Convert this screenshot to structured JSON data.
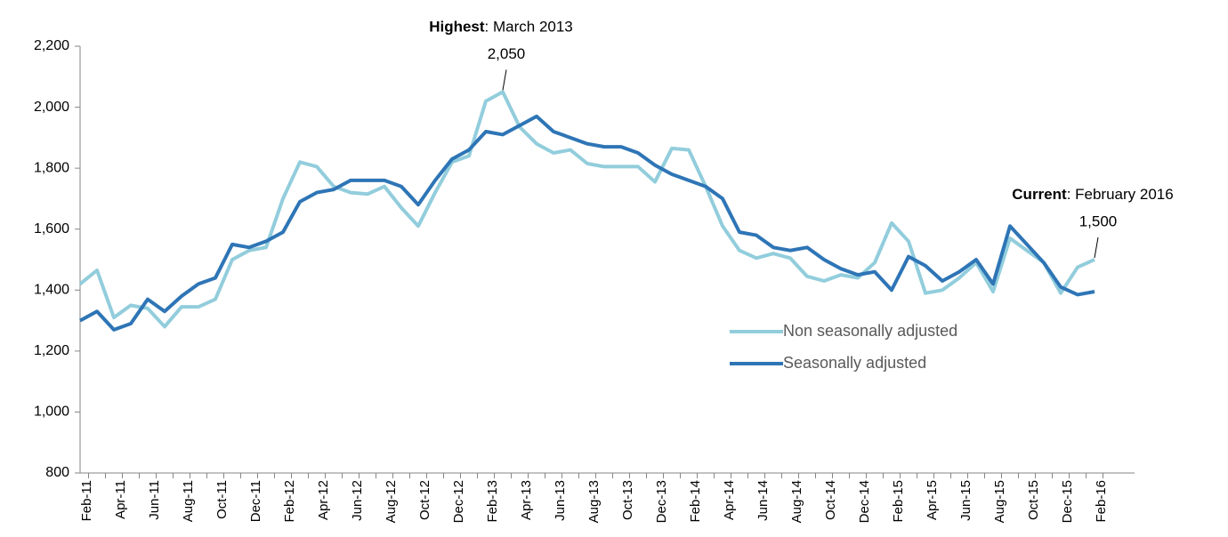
{
  "chart_data": {
    "type": "line",
    "categories": [
      "Feb-11",
      null,
      "Apr-11",
      null,
      "Jun-11",
      null,
      "Aug-11",
      null,
      "Oct-11",
      null,
      "Dec-11",
      null,
      "Feb-12",
      null,
      "Apr-12",
      null,
      "Jun-12",
      null,
      "Aug-12",
      null,
      "Oct-12",
      null,
      "Dec-12",
      null,
      "Feb-13",
      null,
      "Apr-13",
      null,
      "Jun-13",
      null,
      "Aug-13",
      null,
      "Oct-13",
      null,
      "Dec-13",
      null,
      "Feb-14",
      null,
      "Apr-14",
      null,
      "Jun-14",
      null,
      "Aug-14",
      null,
      "Oct-14",
      null,
      "Dec-14",
      null,
      "Feb-15",
      null,
      "Apr-15",
      null,
      "Jun-15",
      null,
      "Aug-15",
      null,
      "Oct-15",
      null,
      "Dec-15",
      null,
      "Feb-16"
    ],
    "series": [
      {
        "name": "Non seasonally adjusted",
        "color": "#92cddc",
        "values": [
          1420,
          1465,
          1310,
          1350,
          1340,
          1280,
          1345,
          1345,
          1370,
          1500,
          1530,
          1540,
          1700,
          1820,
          1805,
          1740,
          1720,
          1715,
          1740,
          1670,
          1610,
          1720,
          1820,
          1840,
          2020,
          2050,
          1935,
          1880,
          1850,
          1860,
          1815,
          1805,
          1805,
          1805,
          1755,
          1865,
          1860,
          1740,
          1610,
          1530,
          1505,
          1520,
          1505,
          1445,
          1430,
          1450,
          1440,
          1490,
          1620,
          1560,
          1390,
          1400,
          1440,
          1490,
          1395,
          1570,
          1530,
          1490,
          1390,
          1475,
          1500
        ]
      },
      {
        "name": "Seasonally adjusted",
        "color": "#2e75b6",
        "values": [
          1300,
          1330,
          1270,
          1290,
          1370,
          1330,
          1380,
          1420,
          1440,
          1550,
          1540,
          1560,
          1590,
          1690,
          1720,
          1730,
          1760,
          1760,
          1760,
          1740,
          1680,
          1760,
          1830,
          1860,
          1920,
          1910,
          1940,
          1970,
          1920,
          1900,
          1880,
          1870,
          1870,
          1850,
          1810,
          1780,
          1760,
          1740,
          1700,
          1590,
          1580,
          1540,
          1530,
          1540,
          1500,
          1470,
          1450,
          1460,
          1400,
          1510,
          1480,
          1430,
          1460,
          1500,
          1420,
          1610,
          1550,
          1490,
          1410,
          1385,
          1395
        ]
      }
    ],
    "ylim": [
      800,
      2200
    ],
    "yticks": [
      {
        "value": 800,
        "label": "800"
      },
      {
        "value": 1000,
        "label": "1,000"
      },
      {
        "value": 1200,
        "label": "1,200"
      },
      {
        "value": 1400,
        "label": "1,400"
      },
      {
        "value": 1600,
        "label": "1,600"
      },
      {
        "value": 1800,
        "label": "1,800"
      },
      {
        "value": 2000,
        "label": "2,000"
      },
      {
        "value": 2200,
        "label": "2,200"
      }
    ],
    "annotations": [
      {
        "bold": "Highest",
        "text": ": March 2013",
        "label": "2,050",
        "series": 0,
        "index": 25
      },
      {
        "bold": "Current",
        "text": ": February 2016",
        "label": "1,500",
        "series": 0,
        "index": 60
      }
    ],
    "legend": "lower right"
  }
}
